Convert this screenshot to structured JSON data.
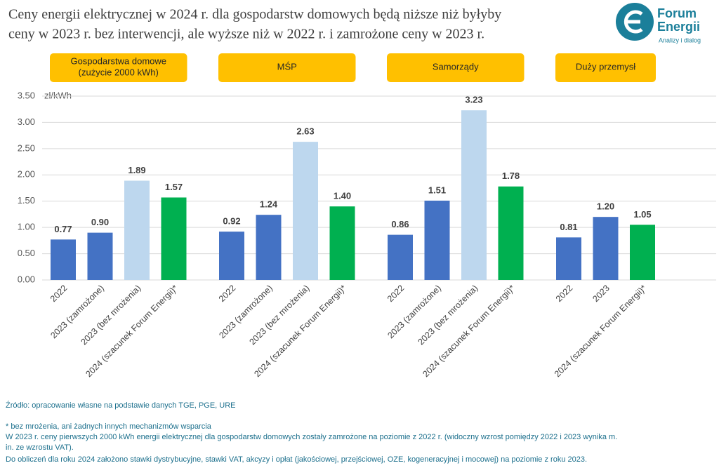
{
  "chart_data": {
    "type": "bar",
    "title": [
      "Ceny energii elektrycznej w 2024 r. dla gospodarstw domowych będą niższe niż byłyby",
      "ceny w 2023 r. bez interwencji, ale wyższe niż w 2022 r. i zamrożone ceny w 2023 r."
    ],
    "logo": {
      "name": [
        "Forum",
        "Energii"
      ],
      "tagline": "Analizy i dialog"
    },
    "y_label": "zł/kWh",
    "ylim": [
      0,
      3.5
    ],
    "yticks": [
      {
        "value": 0,
        "label": "0.00"
      },
      {
        "value": 0.5,
        "label": "0.50"
      },
      {
        "value": 1,
        "label": "1.00"
      },
      {
        "value": 1.5,
        "label": "1.50"
      },
      {
        "value": 2,
        "label": "2.00"
      },
      {
        "value": 2.5,
        "label": "2.50"
      },
      {
        "value": 3,
        "label": "3.00"
      },
      {
        "value": 3.5,
        "label": "3.50"
      }
    ],
    "grid": true,
    "groups": [
      {
        "name": [
          "Gospodarstwa domowe",
          "(zużycie 2000 kWh)"
        ],
        "categories": [
          "2022",
          "2023 (zamrożone)",
          "2023 (bez mrożenia)",
          "2024 (szacunek Forum Energii)*"
        ],
        "values": [
          0.77,
          0.9,
          1.89,
          1.57
        ],
        "value_labels": [
          "0.77",
          "0.90",
          "1.89",
          "1.57"
        ],
        "colors": [
          "#4472c4",
          "#4472c4",
          "#bdd7ee",
          "#00b050"
        ]
      },
      {
        "name": [
          "MŚP"
        ],
        "categories": [
          "2022",
          "2023 (zamrożone)",
          "2023 (bez mrożenia)",
          "2024 (szacunek Forum Energii)*"
        ],
        "values": [
          0.92,
          1.24,
          2.63,
          1.4
        ],
        "value_labels": [
          "0.92",
          "1.24",
          "2.63",
          "1.40"
        ],
        "colors": [
          "#4472c4",
          "#4472c4",
          "#bdd7ee",
          "#00b050"
        ]
      },
      {
        "name": [
          "Samorządy"
        ],
        "categories": [
          "2022",
          "2023 (zamrożone)",
          "2023 (bez mrożenia)",
          "2024 (szacunek Forum Energii)*"
        ],
        "values": [
          0.86,
          1.51,
          3.23,
          1.78
        ],
        "value_labels": [
          "0.86",
          "1.51",
          "3.23",
          "1.78"
        ],
        "colors": [
          "#4472c4",
          "#4472c4",
          "#bdd7ee",
          "#00b050"
        ]
      },
      {
        "name": [
          "Duży przemysł"
        ],
        "categories": [
          "2022",
          "2023",
          "2024 (szacunek Forum Energii)*"
        ],
        "values": [
          0.81,
          1.2,
          1.05
        ],
        "value_labels": [
          "0.81",
          "1.20",
          "1.05"
        ],
        "colors": [
          "#4472c4",
          "#4472c4",
          "#00b050"
        ]
      }
    ],
    "source": "Źródło: opracowanie własne na podstawie danych TGE, PGE, URE",
    "notes": [
      "* bez mrożenia, ani żadnych innych mechanizmów wsparcia",
      "W 2023 r. ceny pierwszych 2000 kWh energii elektrycznej dla gospodarstw domowych zostały zamrożone na poziomie z 2022 r. (widoczny wzrost pomiędzy 2022 i 2023 wynika m.",
      "in. ze wzrostu VAT).",
      "Do obliczeń dla roku 2024 założono stawki dystrybucyjne, stawki VAT, akcyzy i opłat (jakościowej, przejściowej, OZE, kogeneracyjnej i mocowej) na poziomie z roku 2023."
    ]
  }
}
